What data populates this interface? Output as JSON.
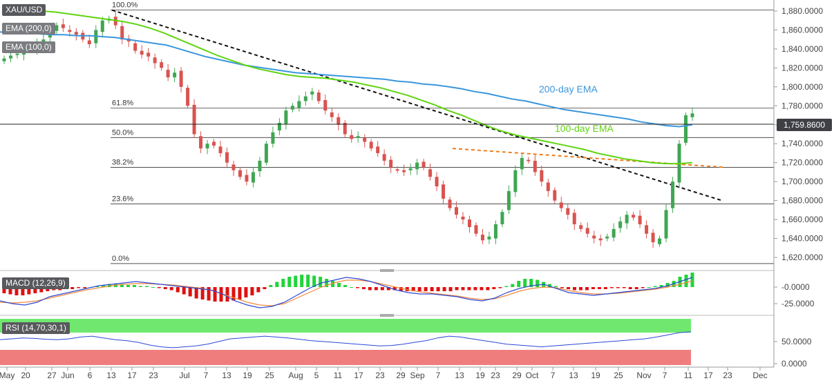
{
  "symbol": "XAU/USD",
  "indicators": {
    "ema200": "EMA (200,0)",
    "ema100": "EMA (100,0)",
    "macd": "MACD (12,26,9)",
    "rsi": "RSI (14,70,30,1)"
  },
  "labels": {
    "ema200": "200-day EMA",
    "ema100": "100-day EMA"
  },
  "current_price": "1,759.8600",
  "colors": {
    "up": "#3fa652",
    "down": "#d9534f",
    "ema200": "#3a96dd",
    "ema100": "#5fd40f",
    "trend": "#111111",
    "triangle": "#f07a18",
    "rsi_over": "#70e870",
    "rsi_under": "#f07d7d",
    "macd_line": "#2a47d6",
    "signal_line": "#f0883a"
  },
  "chart_data": [
    {
      "type": "candlestick",
      "x_ticks": [
        "May",
        "20",
        "27",
        "Jun",
        "6",
        "13",
        "17",
        "23",
        "Jul",
        "7",
        "13",
        "19",
        "25",
        "Aug",
        "5",
        "11",
        "17",
        "23",
        "29",
        "Sep",
        "7",
        "13",
        "19",
        "23",
        "29",
        "Oct",
        "7",
        "13",
        "19",
        "25",
        "Nov",
        "7",
        "11",
        "17",
        "23",
        "Dec"
      ],
      "y_ticks": [
        "1,880.0000",
        "1,860.0000",
        "1,840.0000",
        "1,820.0000",
        "1,800.0000",
        "1,780.0000",
        "1,760.0000",
        "1,740.0000",
        "1,720.0000",
        "1,700.0000",
        "1,680.0000",
        "1,660.0000",
        "1,640.0000",
        "1,620.0000"
      ],
      "ylim": [
        1610,
        1890
      ],
      "fibonacci": [
        {
          "label": "100.0%",
          "value": 1881
        },
        {
          "label": "61.8%",
          "value": 1777.5
        },
        {
          "label": "50.0%",
          "value": 1746.5
        },
        {
          "label": "38.2%",
          "value": 1715
        },
        {
          "label": "23.6%",
          "value": 1676.5
        },
        {
          "label": "0.0%",
          "value": 1613.5
        }
      ],
      "close_path": [
        1830,
        1833,
        1835,
        1838,
        1840,
        1845,
        1850,
        1860,
        1865,
        1862,
        1858,
        1855,
        1850,
        1845,
        1860,
        1870,
        1872,
        1865,
        1850,
        1848,
        1838,
        1834,
        1832,
        1825,
        1820,
        1810,
        1815,
        1800,
        1780,
        1750,
        1735,
        1740,
        1738,
        1730,
        1720,
        1712,
        1705,
        1700,
        1710,
        1722,
        1740,
        1752,
        1762,
        1775,
        1780,
        1785,
        1790,
        1795,
        1785,
        1775,
        1768,
        1760,
        1750,
        1745,
        1748,
        1742,
        1735,
        1730,
        1722,
        1715,
        1712,
        1710,
        1714,
        1720,
        1715,
        1705,
        1695,
        1682,
        1672,
        1665,
        1660,
        1652,
        1645,
        1638,
        1642,
        1655,
        1668,
        1690,
        1712,
        1725,
        1722,
        1710,
        1700,
        1690,
        1680,
        1672,
        1665,
        1655,
        1650,
        1645,
        1640,
        1638,
        1642,
        1650,
        1658,
        1665,
        1662,
        1655,
        1645,
        1636,
        1640,
        1670,
        1700,
        1740,
        1770,
        1772
      ],
      "ema200_path": [
        1858,
        1857,
        1856,
        1856,
        1855,
        1855,
        1854,
        1854,
        1853,
        1852,
        1850,
        1848,
        1846,
        1844,
        1840,
        1836,
        1832,
        1829,
        1826,
        1823,
        1821,
        1819,
        1817,
        1815,
        1814,
        1813,
        1812,
        1811,
        1810,
        1809,
        1808,
        1806,
        1805,
        1803,
        1802,
        1800,
        1798,
        1795,
        1793,
        1790,
        1787,
        1785,
        1782,
        1779,
        1776,
        1774,
        1772,
        1770,
        1768,
        1766,
        1763,
        1761,
        1759,
        1758,
        1760
      ],
      "ema100_path": [
        1880,
        1879,
        1877,
        1875,
        1873,
        1871,
        1869,
        1866,
        1862,
        1857,
        1851,
        1845,
        1839,
        1833,
        1828,
        1823,
        1819,
        1816,
        1813,
        1811,
        1810,
        1809,
        1807,
        1805,
        1802,
        1799,
        1795,
        1791,
        1786,
        1781,
        1775,
        1770,
        1764,
        1758,
        1753,
        1749,
        1746,
        1743,
        1740,
        1737,
        1734,
        1730,
        1727,
        1724,
        1722,
        1720,
        1719,
        1719,
        1720
      ],
      "trendline": {
        "from": 1881,
        "to": 1680
      },
      "triangle_line": {
        "from": 1735,
        "to": 1715
      }
    },
    {
      "type": "bar",
      "name": "MACD",
      "y_ticks": [
        "-0.0000",
        "-25.0000"
      ],
      "histogram": [
        -6,
        -7,
        -8,
        -8,
        -7,
        -6,
        -5,
        -4,
        -3,
        -3,
        -2,
        -2,
        -1,
        -1,
        0,
        1,
        2,
        3,
        3,
        3,
        2,
        2,
        1,
        1,
        0,
        -1,
        -2,
        -3,
        -5,
        -7,
        -9,
        -11,
        -12,
        -13,
        -14,
        -14,
        -14,
        -13,
        -12,
        -10,
        -8,
        -5,
        -2,
        2,
        5,
        8,
        10,
        11,
        12,
        12,
        11,
        10,
        8,
        6,
        4,
        2,
        0,
        -1,
        -2,
        -3,
        -3,
        -3,
        -3,
        -3,
        -4,
        -4,
        -4,
        -4,
        -4,
        -4,
        -4,
        -4,
        -4,
        -3,
        -3,
        -3,
        -3,
        -3,
        -3,
        -2,
        -1,
        1,
        3,
        6,
        8,
        8,
        7,
        5,
        3,
        1,
        -1,
        -2,
        -3,
        -3,
        -3,
        -2,
        -2,
        -2,
        -1,
        -1,
        -1,
        -2,
        -2,
        -1,
        0,
        1,
        2,
        4,
        6,
        10,
        12,
        14
      ],
      "macd_path": [
        -20,
        -24,
        -26,
        -22,
        -14,
        -10,
        -6,
        -2,
        2,
        4,
        6,
        8,
        6,
        4,
        2,
        0,
        -2,
        -4,
        -10,
        -20,
        -26,
        -30,
        -28,
        -22,
        -12,
        -2,
        6,
        10,
        14,
        12,
        8,
        2,
        -4,
        -8,
        -10,
        -10,
        -12,
        -14,
        -18,
        -20,
        -16,
        -8,
        -2,
        2,
        4,
        -2,
        -8,
        -10,
        -12,
        -10,
        -8,
        -6,
        -4,
        -2,
        2,
        8,
        14
      ],
      "signal_path": [
        -22,
        -23,
        -22,
        -20,
        -16,
        -12,
        -8,
        -4,
        -1,
        2,
        4,
        5,
        5,
        4,
        3,
        1,
        -1,
        -4,
        -10,
        -16,
        -22,
        -26,
        -27,
        -24,
        -16,
        -8,
        0,
        6,
        10,
        10,
        8,
        4,
        0,
        -4,
        -7,
        -9,
        -11,
        -13,
        -16,
        -18,
        -17,
        -12,
        -6,
        -2,
        0,
        -1,
        -5,
        -8,
        -10,
        -10,
        -9,
        -7,
        -5,
        -3,
        0,
        4,
        9
      ]
    },
    {
      "type": "line",
      "name": "RSI",
      "y_ticks": [
        "50.0000",
        "0.0000"
      ],
      "overbought": 70,
      "oversold": 30,
      "values": [
        54,
        56,
        58,
        57,
        55,
        54,
        56,
        60,
        62,
        58,
        54,
        52,
        48,
        42,
        38,
        36,
        38,
        40,
        44,
        50,
        56,
        58,
        60,
        62,
        60,
        58,
        55,
        52,
        50,
        48,
        46,
        44,
        42,
        40,
        41,
        44,
        48,
        52,
        58,
        62,
        60,
        56,
        52,
        48,
        44,
        42,
        40,
        38,
        40,
        42,
        44,
        46,
        48,
        50,
        52,
        54,
        56,
        60,
        65,
        70,
        72
      ]
    }
  ]
}
